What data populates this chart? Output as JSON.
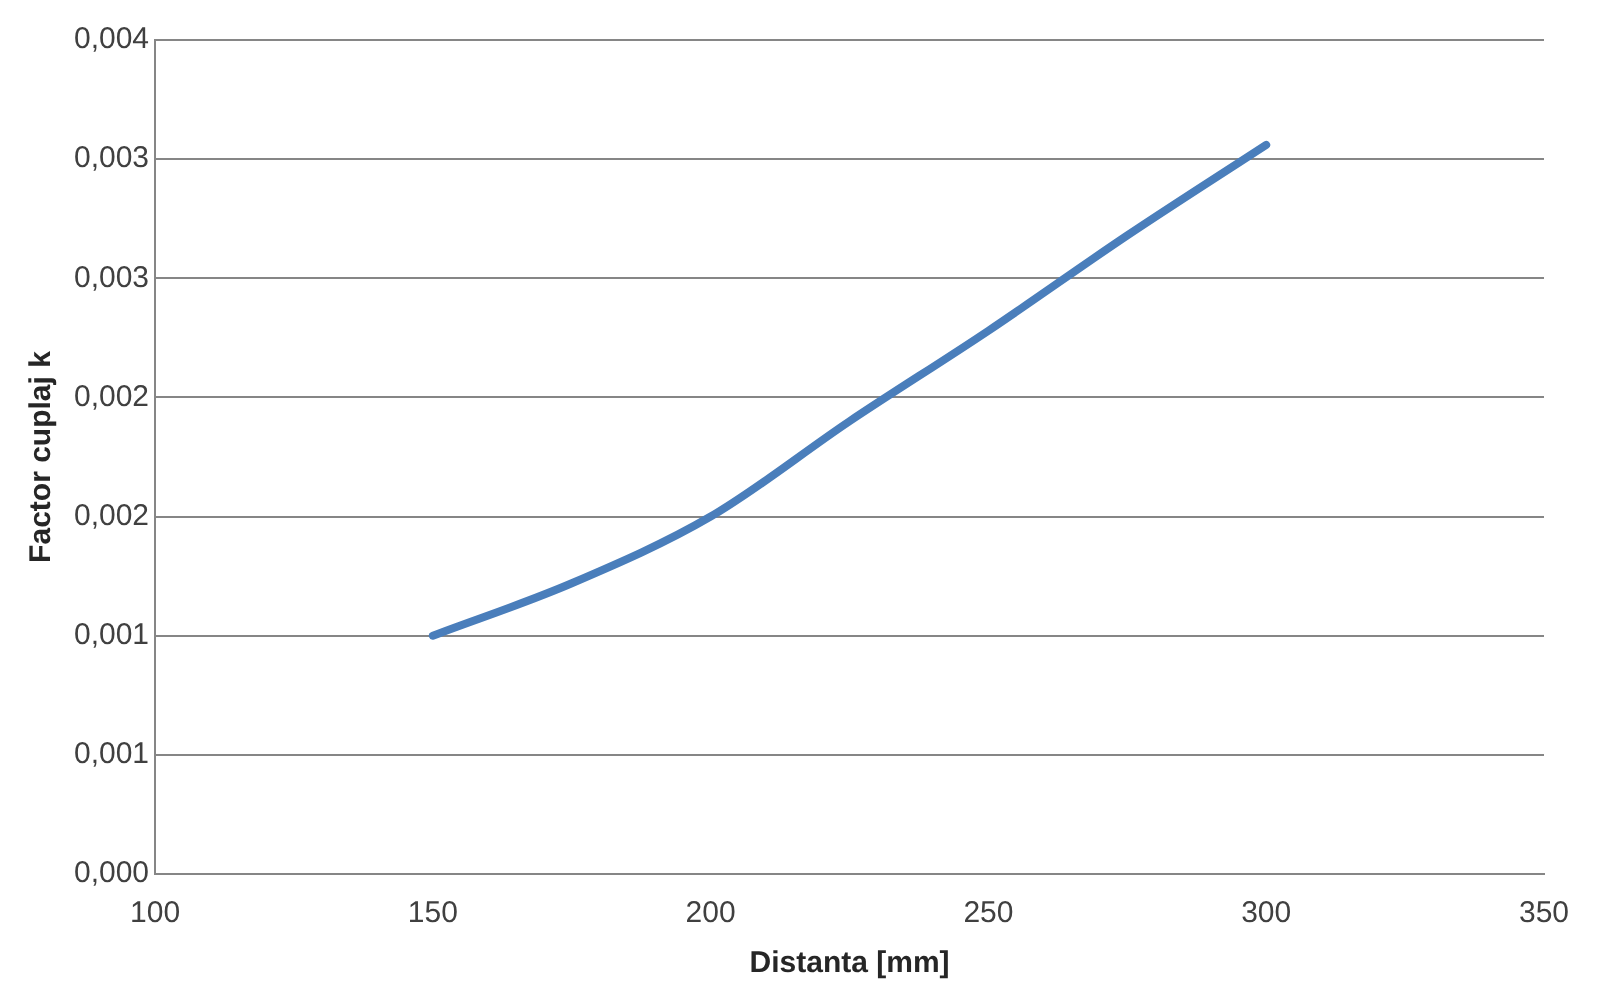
{
  "chart_data": {
    "type": "line",
    "xlabel": "Distanta [mm]",
    "ylabel": "Factor cuplaj k",
    "series": [
      {
        "color": "#4a7ebb",
        "x": [
          150,
          175,
          200,
          225,
          250,
          275,
          300
        ],
        "values": [
          0.001,
          0.00122,
          0.0015,
          0.0019,
          0.00228,
          0.00268,
          0.00306
        ]
      }
    ],
    "xlim": [
      100,
      350
    ],
    "xticks": [
      100,
      150,
      200,
      250,
      300,
      350
    ],
    "ylim": [
      0,
      0.0035
    ],
    "yticks": [
      {
        "value": 0,
        "label": "0,000"
      },
      {
        "value": 0.0005,
        "label": "0,001"
      },
      {
        "value": 0.001,
        "label": "0,001"
      },
      {
        "value": 0.0015,
        "label": "0,002"
      },
      {
        "value": 0.002,
        "label": "0,002"
      },
      {
        "value": 0.0025,
        "label": "0,003"
      },
      {
        "value": 0.003,
        "label": "0,003"
      },
      {
        "value": 0.0035,
        "label": "0,004"
      }
    ],
    "grid": "y",
    "marker": "none",
    "line_style": "solid",
    "legend": false
  }
}
